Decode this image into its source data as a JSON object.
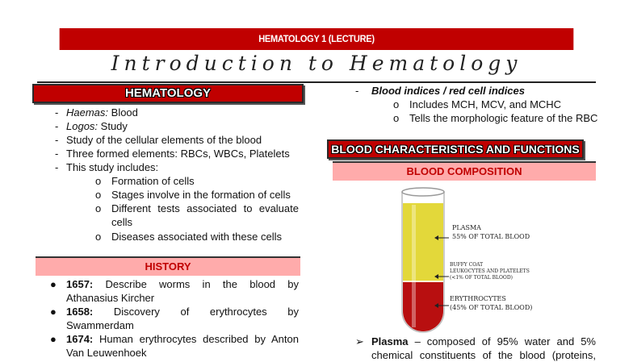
{
  "header": {
    "course": "HEMATOLOGY 1 (LECTURE)",
    "title": "Introduction to Hematology"
  },
  "left": {
    "section_title": "HEMATOLOGY",
    "items": [
      {
        "term": "Haemas:",
        "text": " Blood"
      },
      {
        "term": "Logos:",
        "text": " Study"
      },
      {
        "text": "Study of the cellular elements of the blood"
      },
      {
        "text": "Three formed elements: RBCs, WBCs, Platelets"
      },
      {
        "text": "This study includes:"
      }
    ],
    "sub_items": [
      "Formation of cells",
      "Stages involve in the formation of cells",
      "Different tests associated to evaluate",
      "cells",
      "Diseases associated with these cells"
    ],
    "history_title": "HISTORY",
    "history": [
      {
        "year": "1657:",
        "line1": "Describe worms in the blood by",
        "line2": "Athanasius Kircher"
      },
      {
        "year": "1658:",
        "line1": "Discovery of erythrocytes by",
        "line2": "Swammerdam"
      },
      {
        "year": "1674:",
        "line1": "Human erythrocytes described by Anton",
        "line2": "Van Leuwenhoek"
      }
    ]
  },
  "right": {
    "indices_title": "Blood indices / red cell indices",
    "indices_sub": [
      "Includes MCH, MCV, and MCHC",
      "Tells the morphologic feature of the RBC"
    ],
    "section_title": "BLOOD CHARACTERISTICS AND FUNCTIONS",
    "composition_title": "BLOOD COMPOSITION",
    "figure": {
      "plasma_label": "PLASMA",
      "plasma_pct": "55% OF TOTAL BLOOD",
      "buffy_label": "BUFFY COAT",
      "buffy_desc": "LEUKOCYTES AND PLATELETS",
      "buffy_pct": "(<1% OF TOTAL BLOOD)",
      "ery_label": "ERYTHROCYTES",
      "ery_pct": "(45% OF TOTAL BLOOD)",
      "colors": {
        "plasma": "#e3d83a",
        "erythrocytes": "#b80f10"
      }
    },
    "plasma_term": "Plasma",
    "plasma_line1": " – composed of 95% water and 5%",
    "plasma_line2": "chemical constituents of the blood (proteins,"
  },
  "colors": {
    "accent": "#c00000",
    "pink": "#ffabab"
  }
}
